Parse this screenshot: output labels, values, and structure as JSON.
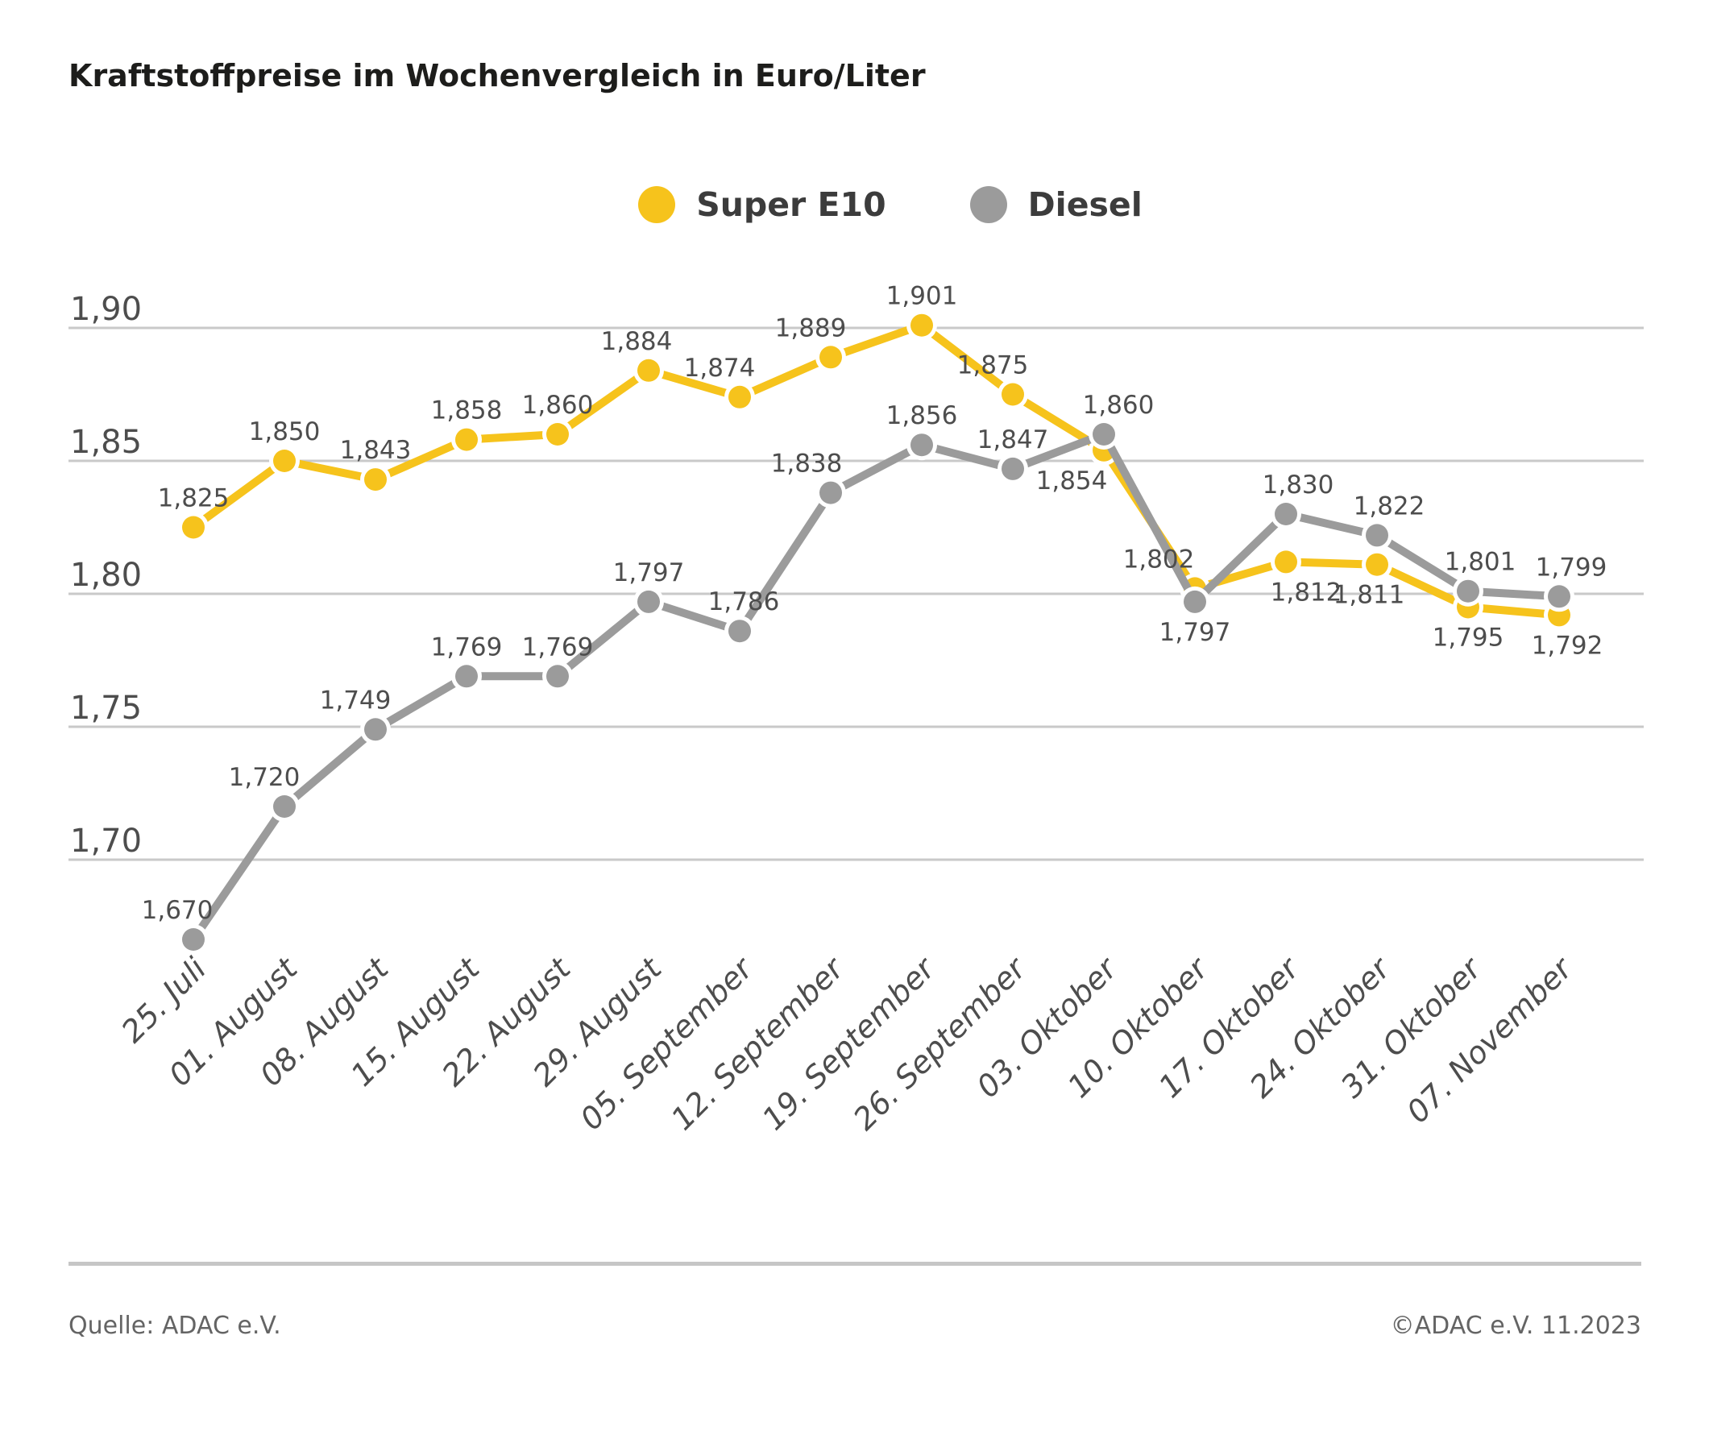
{
  "title": "Kraftstoffpreise im Wochenvergleich in Euro/Liter",
  "footer": {
    "source": "Quelle: ADAC e.V.",
    "copyright": "©ADAC e.V. 11.2023"
  },
  "colors": {
    "grid": "#c9c9c9",
    "axis_text": "#4d4d4d",
    "data_label_text": "#4d4d4d",
    "marker_halo": "#ffffff",
    "super_e10": "#f6c31c",
    "diesel": "#9b9b9b"
  },
  "chart_data": {
    "type": "line",
    "title": "Kraftstoffpreise im Wochenvergleich in Euro/Liter",
    "xlabel": "",
    "ylabel": "Euro/Liter",
    "grid": "horizontal",
    "legend_position": "top-center",
    "ylim": [
      1.655,
      1.925
    ],
    "yticks": [
      {
        "value": 1.9,
        "label": "1,90"
      },
      {
        "value": 1.85,
        "label": "1,85"
      },
      {
        "value": 1.8,
        "label": "1,80"
      },
      {
        "value": 1.75,
        "label": "1,75"
      },
      {
        "value": 1.7,
        "label": "1,70"
      }
    ],
    "categories": [
      "25. Juli",
      "01. August",
      "08. August",
      "15. August",
      "22. August",
      "29. August",
      "05. September",
      "12. September",
      "19. September",
      "26. September",
      "03. Oktober",
      "10. Oktober",
      "17. Oktober",
      "24. Oktober",
      "31. Oktober",
      "07. November"
    ],
    "series": [
      {
        "name": "Super E10",
        "color": "#f6c31c",
        "values": [
          1.825,
          1.85,
          1.843,
          1.858,
          1.86,
          1.884,
          1.874,
          1.889,
          1.901,
          1.875,
          1.854,
          1.802,
          1.812,
          1.811,
          1.795,
          1.792
        ],
        "labels": [
          "1,825",
          "1,850",
          "1,843",
          "1,858",
          "1,860",
          "1,884",
          "1,874",
          "1,889",
          "1,901",
          "1,875",
          "1,854",
          "1,802",
          "1,812",
          "1,811",
          "1,795",
          "1,792"
        ],
        "label_side": [
          "above",
          "above",
          "above",
          "above",
          "above",
          "above",
          "above",
          "above",
          "above",
          "above",
          "below",
          "above",
          "below",
          "below",
          "below",
          "below"
        ],
        "label_dx": [
          0,
          0,
          0,
          0,
          0,
          -15,
          -25,
          -25,
          0,
          -25,
          -40,
          -45,
          25,
          -10,
          0,
          10
        ]
      },
      {
        "name": "Diesel",
        "color": "#9b9b9b",
        "values": [
          1.67,
          1.72,
          1.749,
          1.769,
          1.769,
          1.797,
          1.786,
          1.838,
          1.856,
          1.847,
          1.86,
          1.797,
          1.83,
          1.822,
          1.801,
          1.799
        ],
        "labels": [
          "1,670",
          "1,720",
          "1,749",
          "1,769",
          "1,769",
          "1,797",
          "1,786",
          "1,838",
          "1,856",
          "1,847",
          "1,860",
          "1,797",
          "1,830",
          "1,822",
          "1,801",
          "1,799"
        ],
        "label_side": [
          "above",
          "above",
          "above",
          "above",
          "above",
          "above",
          "above",
          "above",
          "above",
          "above",
          "above",
          "below",
          "above",
          "above",
          "above",
          "above"
        ],
        "label_dx": [
          -20,
          -25,
          -25,
          0,
          0,
          0,
          5,
          -30,
          0,
          0,
          18,
          0,
          15,
          15,
          15,
          15
        ]
      }
    ]
  }
}
